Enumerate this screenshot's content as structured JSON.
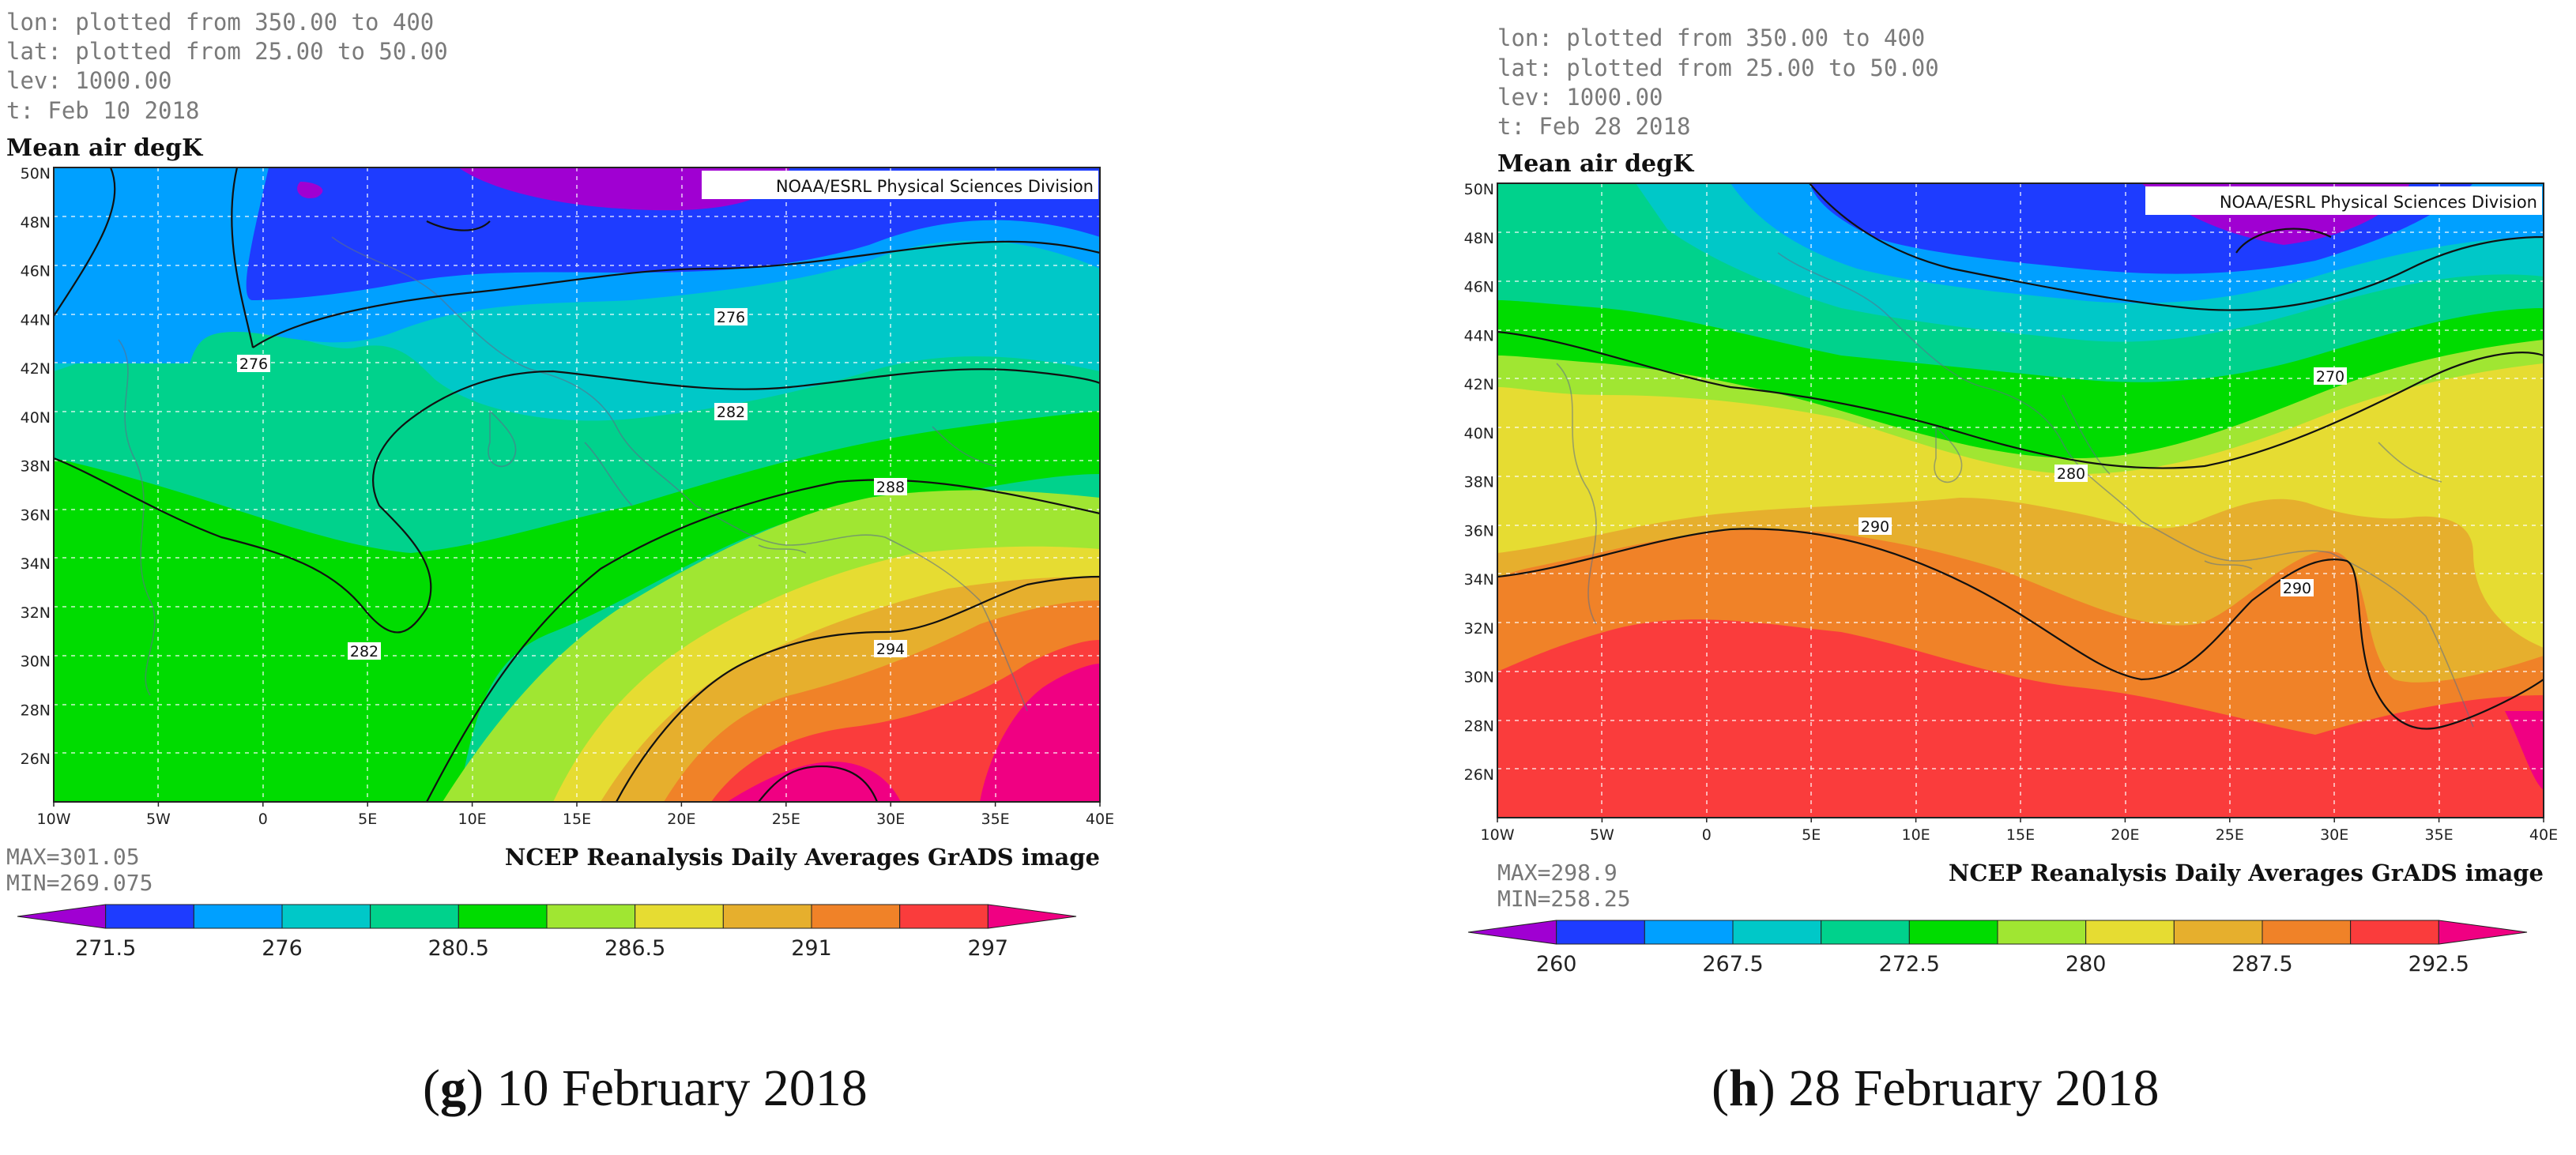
{
  "panels": [
    {
      "meta": [
        "lon: plotted from 350.00 to 400",
        "lat: plotted from 25.00 to 50.00",
        "lev: 1000.00",
        "t: Feb 10 2018"
      ],
      "title": "Mean air degK",
      "credit": "NOAA/ESRL Physical Sciences Division",
      "footer": "NCEP Reanalysis Daily Averages GrADS image",
      "max_label": "MAX=301.05",
      "min_label": "MIN=269.075",
      "lat_ticks": [
        "50N",
        "48N",
        "46N",
        "44N",
        "42N",
        "40N",
        "38N",
        "36N",
        "34N",
        "32N",
        "30N",
        "28N",
        "26N"
      ],
      "lon_ticks": [
        "10W",
        "5W",
        "0",
        "5E",
        "10E",
        "15E",
        "20E",
        "25E",
        "30E",
        "35E",
        "40E"
      ],
      "colorbar_colors": [
        "#a000d2",
        "#1e3cff",
        "#00a0ff",
        "#00c8c8",
        "#00d28c",
        "#00dc00",
        "#a0e632",
        "#e6dc32",
        "#e6af2d",
        "#f08228",
        "#fa3c3c",
        "#f00082"
      ],
      "colorbar_labels": [
        "271.5",
        "276",
        "280.5",
        "286.5",
        "291",
        "297"
      ],
      "contour_labels": [
        "276",
        "276",
        "282",
        "282",
        "288",
        "282",
        "294"
      ],
      "caption_letter": "g",
      "caption_text": " 10 February 2018"
    },
    {
      "meta": [
        "lon: plotted from 350.00 to 400",
        "lat: plotted from 25.00 to 50.00",
        "lev: 1000.00",
        "t: Feb 28 2018"
      ],
      "title": "Mean air degK",
      "credit": "NOAA/ESRL Physical Sciences Division",
      "footer": "NCEP Reanalysis Daily Averages GrADS image",
      "max_label": "MAX=298.9",
      "min_label": "MIN=258.25",
      "lat_ticks": [
        "50N",
        "48N",
        "46N",
        "44N",
        "42N",
        "40N",
        "38N",
        "36N",
        "34N",
        "32N",
        "30N",
        "28N",
        "26N"
      ],
      "lon_ticks": [
        "10W",
        "5W",
        "0",
        "5E",
        "10E",
        "15E",
        "20E",
        "25E",
        "30E",
        "35E",
        "40E"
      ],
      "colorbar_colors": [
        "#a000d2",
        "#1e3cff",
        "#00a0ff",
        "#00c8c8",
        "#00d28c",
        "#00dc00",
        "#a0e632",
        "#e6dc32",
        "#e6af2d",
        "#f08228",
        "#fa3c3c",
        "#f00082"
      ],
      "colorbar_labels": [
        "260",
        "267.5",
        "272.5",
        "280",
        "287.5",
        "292.5"
      ],
      "contour_labels": [
        "270",
        "280",
        "290",
        "290"
      ],
      "caption_letter": "h",
      "caption_text": " 28 February 2018"
    }
  ]
}
